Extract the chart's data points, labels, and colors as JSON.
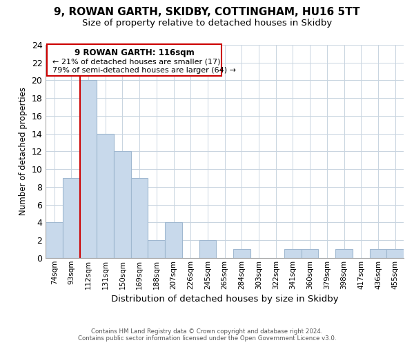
{
  "title": "9, ROWAN GARTH, SKIDBY, COTTINGHAM, HU16 5TT",
  "subtitle": "Size of property relative to detached houses in Skidby",
  "xlabel": "Distribution of detached houses by size in Skidby",
  "ylabel": "Number of detached properties",
  "bar_color": "#c8d9eb",
  "bar_edge_color": "#a0b8d0",
  "bin_labels": [
    "74sqm",
    "93sqm",
    "112sqm",
    "131sqm",
    "150sqm",
    "169sqm",
    "188sqm",
    "207sqm",
    "226sqm",
    "245sqm",
    "265sqm",
    "284sqm",
    "303sqm",
    "322sqm",
    "341sqm",
    "360sqm",
    "379sqm",
    "398sqm",
    "417sqm",
    "436sqm",
    "455sqm"
  ],
  "bar_values": [
    4,
    9,
    20,
    14,
    12,
    9,
    2,
    4,
    0,
    2,
    0,
    1,
    0,
    0,
    1,
    1,
    0,
    1,
    0,
    1,
    1
  ],
  "ylim": [
    0,
    24
  ],
  "yticks": [
    0,
    2,
    4,
    6,
    8,
    10,
    12,
    14,
    16,
    18,
    20,
    22,
    24
  ],
  "red_line_x": 1.5,
  "marker_label": "9 ROWAN GARTH: 116sqm",
  "annotation_line1": "← 21% of detached houses are smaller (17)",
  "annotation_line2": "79% of semi-detached houses are larger (64) →",
  "footer_line1": "Contains HM Land Registry data © Crown copyright and database right 2024.",
  "footer_line2": "Contains public sector information licensed under the Open Government Licence v3.0.",
  "grid_color": "#c8d4e0",
  "red_line_color": "#cc0000",
  "annotation_box_edge": "#cc0000",
  "title_fontsize": 11,
  "subtitle_fontsize": 9.5
}
